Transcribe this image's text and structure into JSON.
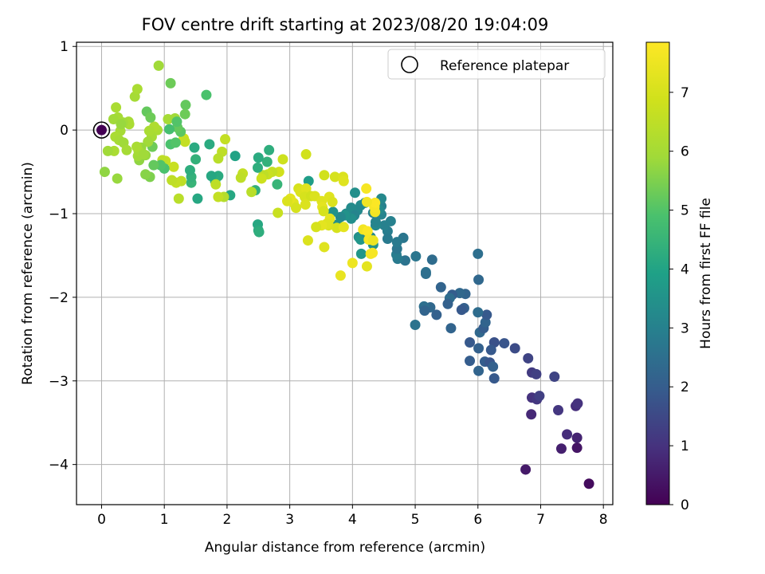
{
  "chart_data": {
    "type": "scatter",
    "title": "FOV centre drift starting at 2023/08/20 19:04:09",
    "xlabel": "Angular distance from reference (arcmin)",
    "ylabel": "Rotation from reference (arcmin)",
    "xlim": [
      -0.4,
      8.15
    ],
    "ylim": [
      -4.48,
      1.05
    ],
    "xticks": [
      0,
      1,
      2,
      3,
      4,
      5,
      6,
      7,
      8
    ],
    "xtick_labels": [
      "0",
      "1",
      "2",
      "3",
      "4",
      "5",
      "6",
      "7",
      "8"
    ],
    "yticks": [
      1,
      0,
      -1,
      -2,
      -3,
      -4
    ],
    "ytick_labels": [
      "1",
      "0",
      "−1",
      "−2",
      "−3",
      "−4"
    ],
    "grid": true,
    "legend": {
      "placement": "top-right",
      "entries": [
        "Reference platepar"
      ]
    },
    "reference_point": {
      "x": 0,
      "y": 0
    },
    "colorbar": {
      "label": "Hours from first FF file",
      "range": [
        0,
        7.85
      ],
      "ticks": [
        0,
        1,
        2,
        3,
        4,
        5,
        6,
        7
      ],
      "tick_labels": [
        "0",
        "1",
        "2",
        "3",
        "4",
        "5",
        "6",
        "7"
      ],
      "colormap": "viridis"
    },
    "series": [
      {
        "points": [
          [
            7.77,
            -4.23,
            0.2
          ],
          [
            6.76,
            -4.06,
            0.5
          ],
          [
            7.33,
            -3.81,
            0.6
          ],
          [
            7.58,
            -3.8,
            0.4
          ],
          [
            7.42,
            -3.64,
            0.9
          ],
          [
            7.58,
            -3.68,
            0.7
          ],
          [
            6.85,
            -3.4,
            0.8
          ],
          [
            7.56,
            -3.3,
            0.9
          ],
          [
            7.59,
            -3.27,
            1.0
          ],
          [
            7.28,
            -3.35,
            1.1
          ],
          [
            6.86,
            -3.2,
            1.0
          ],
          [
            6.94,
            -3.22,
            1.1
          ],
          [
            6.98,
            -3.18,
            1.3
          ],
          [
            6.86,
            -2.9,
            1.2
          ],
          [
            6.93,
            -2.92,
            1.3
          ],
          [
            7.22,
            -2.95,
            1.4
          ],
          [
            6.8,
            -2.73,
            1.4
          ],
          [
            6.59,
            -2.61,
            1.6
          ],
          [
            6.42,
            -2.55,
            1.8
          ],
          [
            6.26,
            -2.54,
            1.7
          ],
          [
            6.21,
            -2.63,
            1.9
          ],
          [
            6.11,
            -2.77,
            2.0
          ],
          [
            6.19,
            -2.78,
            1.8
          ],
          [
            6.24,
            -2.83,
            2.1
          ],
          [
            6.26,
            -2.97,
            1.9
          ],
          [
            6.01,
            -2.88,
            2.2
          ],
          [
            5.87,
            -2.76,
            2.0
          ],
          [
            6.01,
            -2.61,
            2.1
          ],
          [
            5.87,
            -2.54,
            1.9
          ],
          [
            6.03,
            -2.42,
            2.3
          ],
          [
            6.09,
            -2.37,
            2.0
          ],
          [
            6.12,
            -2.3,
            2.2
          ],
          [
            6.14,
            -2.21,
            1.9
          ],
          [
            6.0,
            -2.18,
            2.4
          ],
          [
            5.78,
            -2.13,
            2.1
          ],
          [
            5.74,
            -2.15,
            1.9
          ],
          [
            5.8,
            -1.96,
            2.2
          ],
          [
            5.71,
            -1.95,
            2.3
          ],
          [
            5.59,
            -1.97,
            2.0
          ],
          [
            5.55,
            -2.01,
            2.4
          ],
          [
            5.52,
            -2.08,
            2.1
          ],
          [
            5.41,
            -1.88,
            2.2
          ],
          [
            5.24,
            -2.12,
            2.3
          ],
          [
            5.14,
            -2.11,
            2.5
          ],
          [
            5.15,
            -2.16,
            2.2
          ],
          [
            5.34,
            -2.21,
            2.1
          ],
          [
            5.57,
            -2.37,
            2.2
          ],
          [
            5.0,
            -2.33,
            2.6
          ],
          [
            6.01,
            -1.79,
            2.3
          ],
          [
            6.0,
            -1.48,
            2.5
          ],
          [
            5.27,
            -1.55,
            2.4
          ],
          [
            5.17,
            -1.7,
            2.6
          ],
          [
            5.17,
            -1.72,
            2.5
          ],
          [
            5.01,
            -1.51,
            2.7
          ],
          [
            4.84,
            -1.56,
            2.6
          ],
          [
            4.81,
            -1.29,
            2.7
          ],
          [
            4.72,
            -1.54,
            2.8
          ],
          [
            4.7,
            -1.49,
            2.9
          ],
          [
            4.71,
            -1.42,
            2.7
          ],
          [
            4.71,
            -1.34,
            2.8
          ],
          [
            4.61,
            -1.09,
            3.0
          ],
          [
            4.56,
            -1.21,
            2.9
          ],
          [
            4.56,
            -1.3,
            2.8
          ],
          [
            4.51,
            -1.14,
            3.0
          ],
          [
            4.46,
            -1.01,
            3.1
          ],
          [
            4.46,
            -0.91,
            3.0
          ],
          [
            4.37,
            -1.14,
            3.2
          ],
          [
            4.37,
            -1.1,
            3.1
          ],
          [
            4.42,
            -0.95,
            3.3
          ],
          [
            4.33,
            -0.99,
            3.0
          ],
          [
            4.46,
            -0.82,
            3.2
          ],
          [
            4.2,
            -0.87,
            3.1
          ],
          [
            4.13,
            -0.9,
            3.3
          ],
          [
            4.04,
            -0.75,
            3.4
          ],
          [
            4.08,
            -0.96,
            3.2
          ],
          [
            3.98,
            -0.93,
            3.3
          ],
          [
            4.03,
            -1.02,
            3.1
          ],
          [
            3.98,
            -1.06,
            3.4
          ],
          [
            3.9,
            -1.0,
            3.3
          ],
          [
            3.88,
            -1.02,
            3.5
          ],
          [
            3.81,
            -1.04,
            3.2
          ],
          [
            3.76,
            -1.13,
            3.4
          ],
          [
            3.69,
            -0.98,
            3.5
          ],
          [
            4.1,
            -1.28,
            3.4
          ],
          [
            4.13,
            -1.31,
            3.6
          ],
          [
            4.23,
            -1.24,
            3.3
          ],
          [
            4.33,
            -1.37,
            3.5
          ],
          [
            4.29,
            -1.28,
            3.2
          ],
          [
            4.14,
            -1.48,
            3.6
          ],
          [
            3.3,
            -0.61,
            3.8
          ],
          [
            3.26,
            -0.29,
            6.9
          ],
          [
            3.14,
            -0.7,
            7.0
          ],
          [
            3.17,
            -0.74,
            7.1
          ],
          [
            3.26,
            -0.7,
            7.2
          ],
          [
            3.24,
            -0.8,
            7.0
          ],
          [
            3.34,
            -0.79,
            6.9
          ],
          [
            3.4,
            -0.79,
            7.1
          ],
          [
            3.51,
            -0.85,
            7.2
          ],
          [
            3.52,
            -0.92,
            7.3
          ],
          [
            3.54,
            -0.97,
            7.0
          ],
          [
            3.63,
            -0.8,
            7.2
          ],
          [
            3.68,
            -0.86,
            7.1
          ],
          [
            3.55,
            -0.54,
            6.9
          ],
          [
            3.72,
            -0.56,
            7.0
          ],
          [
            3.85,
            -0.56,
            7.1
          ],
          [
            3.86,
            -0.61,
            7.2
          ],
          [
            3.64,
            -1.06,
            7.3
          ],
          [
            3.75,
            -1.17,
            7.0
          ],
          [
            3.62,
            -1.14,
            7.1
          ],
          [
            3.59,
            -1.12,
            7.2
          ],
          [
            3.51,
            -1.14,
            7.3
          ],
          [
            3.42,
            -1.16,
            7.0
          ],
          [
            3.29,
            -1.32,
            7.1
          ],
          [
            3.55,
            -1.4,
            7.2
          ],
          [
            3.86,
            -1.16,
            7.3
          ],
          [
            3.81,
            -1.74,
            7.4
          ],
          [
            4.0,
            -1.59,
            7.5
          ],
          [
            4.23,
            -1.63,
            7.3
          ],
          [
            4.29,
            -1.48,
            7.6
          ],
          [
            4.32,
            -1.47,
            7.7
          ],
          [
            4.17,
            -1.19,
            7.6
          ],
          [
            4.24,
            -1.21,
            7.8
          ],
          [
            4.26,
            -1.31,
            7.7
          ],
          [
            4.33,
            -1.32,
            7.5
          ],
          [
            4.36,
            -0.98,
            7.6
          ],
          [
            4.35,
            -0.92,
            7.7
          ],
          [
            4.36,
            -0.87,
            7.8
          ],
          [
            4.23,
            -0.86,
            7.6
          ],
          [
            4.22,
            -0.7,
            7.7
          ],
          [
            3.25,
            -0.89,
            7.1
          ],
          [
            3.06,
            -0.87,
            7.2
          ],
          [
            3.1,
            -0.93,
            7.0
          ],
          [
            3.01,
            -0.82,
            7.3
          ],
          [
            2.96,
            -0.85,
            7.1
          ],
          [
            2.89,
            -0.35,
            6.8
          ],
          [
            2.83,
            -0.5,
            6.9
          ],
          [
            2.81,
            -0.99,
            6.7
          ],
          [
            2.67,
            -0.24,
            4.3
          ],
          [
            2.64,
            -0.38,
            4.4
          ],
          [
            2.8,
            -0.65,
            4.5
          ],
          [
            2.72,
            -0.5,
            6.6
          ],
          [
            2.65,
            -0.53,
            6.7
          ],
          [
            2.58,
            -0.54,
            6.5
          ],
          [
            2.55,
            -0.58,
            6.8
          ],
          [
            2.49,
            -0.45,
            4.3
          ],
          [
            2.5,
            -0.33,
            4.2
          ],
          [
            2.45,
            -0.72,
            4.4
          ],
          [
            2.49,
            -1.13,
            4.1
          ],
          [
            2.5,
            -1.2,
            4.2
          ],
          [
            2.51,
            -1.22,
            4.3
          ],
          [
            2.39,
            -0.74,
            6.4
          ],
          [
            2.25,
            -0.52,
            6.6
          ],
          [
            2.22,
            -0.57,
            6.5
          ],
          [
            2.13,
            -0.31,
            4.0
          ],
          [
            2.05,
            -0.78,
            4.1
          ],
          [
            1.95,
            -0.8,
            6.3
          ],
          [
            1.97,
            -0.11,
            6.6
          ],
          [
            1.92,
            -0.26,
            6.5
          ],
          [
            1.86,
            -0.34,
            6.4
          ],
          [
            1.86,
            -0.55,
            4.2
          ],
          [
            1.81,
            -0.61,
            4.3
          ],
          [
            1.75,
            -0.55,
            4.1
          ],
          [
            1.86,
            -0.8,
            6.6
          ],
          [
            1.82,
            -0.65,
            6.5
          ],
          [
            1.72,
            -0.17,
            4.2
          ],
          [
            1.53,
            -0.82,
            4.1
          ],
          [
            1.43,
            -0.63,
            4.5
          ],
          [
            1.43,
            -0.56,
            4.4
          ],
          [
            1.41,
            -0.48,
            4.3
          ],
          [
            1.48,
            -0.21,
            4.2
          ],
          [
            1.5,
            -0.35,
            4.4
          ],
          [
            1.31,
            -0.1,
            6.8
          ],
          [
            1.33,
            -0.14,
            6.6
          ],
          [
            1.27,
            -0.61,
            6.5
          ],
          [
            1.23,
            -0.82,
            6.4
          ],
          [
            1.19,
            -0.63,
            6.6
          ],
          [
            1.12,
            -0.6,
            6.5
          ],
          [
            1.02,
            -0.37,
            6.6
          ],
          [
            0.97,
            -0.36,
            6.5
          ],
          [
            1.15,
            -0.44,
            6.7
          ],
          [
            1.1,
            -0.17,
            4.9
          ],
          [
            1.18,
            -0.15,
            5.0
          ],
          [
            1.26,
            -0.02,
            5.1
          ],
          [
            1.21,
            0.03,
            5.2
          ],
          [
            1.08,
            0.01,
            4.8
          ],
          [
            1.0,
            -0.46,
            4.9
          ],
          [
            0.94,
            -0.42,
            5.0
          ],
          [
            0.83,
            -0.42,
            5.2
          ],
          [
            0.81,
            -0.2,
            5.3
          ],
          [
            0.89,
            0.0,
            6.1
          ],
          [
            0.84,
            0.04,
            6.2
          ],
          [
            0.8,
            -0.08,
            6.0
          ],
          [
            0.74,
            -0.14,
            5.9
          ],
          [
            0.76,
            -0.01,
            6.1
          ],
          [
            0.72,
            0.22,
            5.2
          ],
          [
            0.78,
            0.15,
            5.3
          ],
          [
            0.7,
            -0.3,
            5.8
          ],
          [
            0.77,
            -0.56,
            5.5
          ],
          [
            0.7,
            -0.53,
            5.6
          ],
          [
            0.6,
            -0.36,
            5.7
          ],
          [
            0.58,
            -0.31,
            5.9
          ],
          [
            0.63,
            -0.21,
            5.8
          ],
          [
            0.59,
            -0.25,
            6.0
          ],
          [
            0.67,
            -0.29,
            5.9
          ],
          [
            0.56,
            -0.2,
            6.1
          ],
          [
            0.53,
            0.4,
            6.0
          ],
          [
            0.57,
            0.49,
            6.1
          ],
          [
            0.43,
            0.1,
            6.0
          ],
          [
            0.44,
            0.07,
            6.1
          ],
          [
            0.34,
            0.09,
            5.9
          ],
          [
            0.26,
            0.15,
            6.0
          ],
          [
            0.23,
            0.27,
            6.1
          ],
          [
            0.19,
            0.13,
            5.9
          ],
          [
            0.3,
            -0.01,
            6.0
          ],
          [
            0.22,
            -0.08,
            6.1
          ],
          [
            0.31,
            0.07,
            5.8
          ],
          [
            0.28,
            -0.12,
            6.0
          ],
          [
            0.35,
            -0.15,
            5.9
          ],
          [
            0.4,
            -0.24,
            6.0
          ],
          [
            0.2,
            -0.25,
            6.1
          ],
          [
            0.1,
            -0.25,
            5.9
          ],
          [
            0.05,
            -0.5,
            5.7
          ],
          [
            0.25,
            -0.58,
            5.8
          ],
          [
            1.1,
            0.56,
            5.3
          ],
          [
            0.91,
            0.77,
            5.9
          ],
          [
            1.67,
            0.42,
            4.9
          ],
          [
            1.34,
            0.3,
            5.2
          ],
          [
            1.33,
            0.19,
            5.3
          ],
          [
            1.06,
            0.13,
            6.0
          ],
          [
            1.17,
            0.14,
            5.9
          ],
          [
            1.2,
            0.1,
            5.0
          ],
          [
            0.0,
            0.0,
            0.0
          ]
        ]
      }
    ]
  }
}
